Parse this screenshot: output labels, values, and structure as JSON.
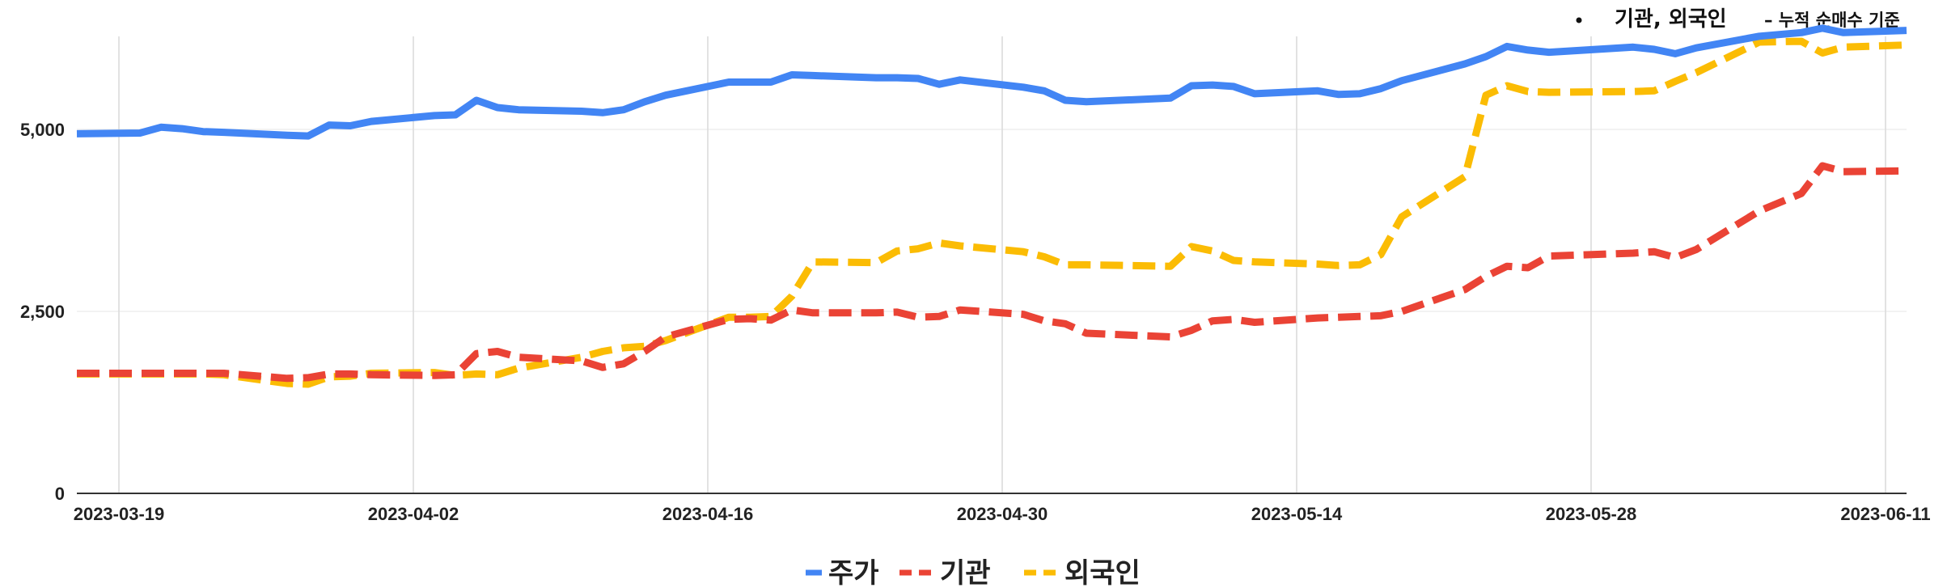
{
  "note": {
    "main": "기관, 외국인",
    "sub": "– 누적 순매수 기준"
  },
  "chart_data": {
    "type": "line",
    "title": "",
    "xlabel": "",
    "ylabel": "",
    "ylim": [
      0,
      6500
    ],
    "yticks": [
      0,
      2500,
      5000
    ],
    "ytick_labels": [
      "0",
      "2,500",
      "5,000"
    ],
    "x_tick_labels": [
      "2023-03-19",
      "2023-04-02",
      "2023-04-16",
      "2023-04-30",
      "2023-05-14",
      "2023-05-28",
      "2023-06-11"
    ],
    "x_range": [
      "2023-03-17",
      "2023-06-12"
    ],
    "grid": "vertical",
    "legend_position": "bottom",
    "series": [
      {
        "name": "주가",
        "color": "#4285F4",
        "dash": "solid",
        "points": [
          [
            "2023-03-17",
            4940
          ],
          [
            "2023-03-20",
            4950
          ],
          [
            "2023-03-21",
            5030
          ],
          [
            "2023-03-22",
            5010
          ],
          [
            "2023-03-23",
            4970
          ],
          [
            "2023-03-24",
            4960
          ],
          [
            "2023-03-27",
            4920
          ],
          [
            "2023-03-28",
            4910
          ],
          [
            "2023-03-29",
            5060
          ],
          [
            "2023-03-30",
            5050
          ],
          [
            "2023-03-31",
            5110
          ],
          [
            "2023-04-03",
            5190
          ],
          [
            "2023-04-04",
            5200
          ],
          [
            "2023-04-05",
            5400
          ],
          [
            "2023-04-06",
            5300
          ],
          [
            "2023-04-07",
            5270
          ],
          [
            "2023-04-10",
            5250
          ],
          [
            "2023-04-11",
            5230
          ],
          [
            "2023-04-12",
            5270
          ],
          [
            "2023-04-13",
            5380
          ],
          [
            "2023-04-14",
            5470
          ],
          [
            "2023-04-17",
            5650
          ],
          [
            "2023-04-18",
            5650
          ],
          [
            "2023-04-19",
            5650
          ],
          [
            "2023-04-20",
            5750
          ],
          [
            "2023-04-21",
            5740
          ],
          [
            "2023-04-24",
            5710
          ],
          [
            "2023-04-25",
            5710
          ],
          [
            "2023-04-26",
            5700
          ],
          [
            "2023-04-27",
            5620
          ],
          [
            "2023-04-28",
            5680
          ],
          [
            "2023-05-01",
            5580
          ],
          [
            "2023-05-02",
            5530
          ],
          [
            "2023-05-03",
            5400
          ],
          [
            "2023-05-04",
            5380
          ],
          [
            "2023-05-08",
            5430
          ],
          [
            "2023-05-09",
            5600
          ],
          [
            "2023-05-10",
            5610
          ],
          [
            "2023-05-11",
            5590
          ],
          [
            "2023-05-12",
            5490
          ],
          [
            "2023-05-15",
            5530
          ],
          [
            "2023-05-16",
            5480
          ],
          [
            "2023-05-17",
            5490
          ],
          [
            "2023-05-18",
            5560
          ],
          [
            "2023-05-19",
            5670
          ],
          [
            "2023-05-22",
            5900
          ],
          [
            "2023-05-23",
            6000
          ],
          [
            "2023-05-24",
            6140
          ],
          [
            "2023-05-25",
            6090
          ],
          [
            "2023-05-26",
            6060
          ],
          [
            "2023-05-30",
            6130
          ],
          [
            "2023-05-31",
            6100
          ],
          [
            "2023-06-01",
            6040
          ],
          [
            "2023-06-02",
            6120
          ],
          [
            "2023-06-05",
            6280
          ],
          [
            "2023-06-07",
            6330
          ],
          [
            "2023-06-08",
            6390
          ],
          [
            "2023-06-09",
            6330
          ],
          [
            "2023-06-12",
            6360
          ]
        ]
      },
      {
        "name": "기관",
        "color": "#EA4335",
        "dash": "dashed",
        "points": [
          [
            "2023-03-17",
            1650
          ],
          [
            "2023-03-20",
            1650
          ],
          [
            "2023-03-21",
            1650
          ],
          [
            "2023-03-22",
            1650
          ],
          [
            "2023-03-23",
            1650
          ],
          [
            "2023-03-24",
            1650
          ],
          [
            "2023-03-27",
            1580
          ],
          [
            "2023-03-28",
            1590
          ],
          [
            "2023-03-29",
            1640
          ],
          [
            "2023-03-30",
            1640
          ],
          [
            "2023-03-31",
            1630
          ],
          [
            "2023-04-03",
            1620
          ],
          [
            "2023-04-04",
            1630
          ],
          [
            "2023-04-05",
            1920
          ],
          [
            "2023-04-06",
            1950
          ],
          [
            "2023-04-07",
            1870
          ],
          [
            "2023-04-10",
            1820
          ],
          [
            "2023-04-11",
            1730
          ],
          [
            "2023-04-12",
            1780
          ],
          [
            "2023-04-13",
            1950
          ],
          [
            "2023-04-14",
            2150
          ],
          [
            "2023-04-17",
            2390
          ],
          [
            "2023-04-18",
            2400
          ],
          [
            "2023-04-19",
            2380
          ],
          [
            "2023-04-20",
            2520
          ],
          [
            "2023-04-21",
            2480
          ],
          [
            "2023-04-24",
            2480
          ],
          [
            "2023-04-25",
            2490
          ],
          [
            "2023-04-26",
            2420
          ],
          [
            "2023-04-27",
            2430
          ],
          [
            "2023-04-28",
            2520
          ],
          [
            "2023-05-01",
            2460
          ],
          [
            "2023-05-02",
            2370
          ],
          [
            "2023-05-03",
            2330
          ],
          [
            "2023-05-04",
            2200
          ],
          [
            "2023-05-08",
            2150
          ],
          [
            "2023-05-09",
            2240
          ],
          [
            "2023-05-10",
            2370
          ],
          [
            "2023-05-11",
            2390
          ],
          [
            "2023-05-12",
            2350
          ],
          [
            "2023-05-15",
            2410
          ],
          [
            "2023-05-16",
            2420
          ],
          [
            "2023-05-17",
            2430
          ],
          [
            "2023-05-18",
            2440
          ],
          [
            "2023-05-19",
            2500
          ],
          [
            "2023-05-22",
            2800
          ],
          [
            "2023-05-23",
            2980
          ],
          [
            "2023-05-24",
            3120
          ],
          [
            "2023-05-25",
            3100
          ],
          [
            "2023-05-26",
            3260
          ],
          [
            "2023-05-30",
            3300
          ],
          [
            "2023-05-31",
            3320
          ],
          [
            "2023-06-01",
            3240
          ],
          [
            "2023-06-02",
            3350
          ],
          [
            "2023-06-05",
            3880
          ],
          [
            "2023-06-07",
            4120
          ],
          [
            "2023-06-08",
            4500
          ],
          [
            "2023-06-09",
            4420
          ],
          [
            "2023-06-12",
            4430
          ]
        ]
      },
      {
        "name": "외국인",
        "color": "#FBBC04",
        "dash": "dashed",
        "points": [
          [
            "2023-03-17",
            1640
          ],
          [
            "2023-03-20",
            1640
          ],
          [
            "2023-03-21",
            1640
          ],
          [
            "2023-03-22",
            1640
          ],
          [
            "2023-03-23",
            1640
          ],
          [
            "2023-03-24",
            1630
          ],
          [
            "2023-03-27",
            1510
          ],
          [
            "2023-03-28",
            1500
          ],
          [
            "2023-03-29",
            1600
          ],
          [
            "2023-03-30",
            1610
          ],
          [
            "2023-03-31",
            1650
          ],
          [
            "2023-04-03",
            1660
          ],
          [
            "2023-04-04",
            1620
          ],
          [
            "2023-04-05",
            1640
          ],
          [
            "2023-04-06",
            1630
          ],
          [
            "2023-04-07",
            1720
          ],
          [
            "2023-04-10",
            1870
          ],
          [
            "2023-04-11",
            1950
          ],
          [
            "2023-04-12",
            2000
          ],
          [
            "2023-04-13",
            2020
          ],
          [
            "2023-04-14",
            2100
          ],
          [
            "2023-04-17",
            2420
          ],
          [
            "2023-04-18",
            2420
          ],
          [
            "2023-04-19",
            2430
          ],
          [
            "2023-04-20",
            2710
          ],
          [
            "2023-04-21",
            3180
          ],
          [
            "2023-04-24",
            3170
          ],
          [
            "2023-04-25",
            3330
          ],
          [
            "2023-04-26",
            3360
          ],
          [
            "2023-04-27",
            3440
          ],
          [
            "2023-04-28",
            3400
          ],
          [
            "2023-05-01",
            3320
          ],
          [
            "2023-05-02",
            3250
          ],
          [
            "2023-05-03",
            3140
          ],
          [
            "2023-05-04",
            3140
          ],
          [
            "2023-05-08",
            3120
          ],
          [
            "2023-05-09",
            3390
          ],
          [
            "2023-05-10",
            3330
          ],
          [
            "2023-05-11",
            3200
          ],
          [
            "2023-05-12",
            3180
          ],
          [
            "2023-05-15",
            3150
          ],
          [
            "2023-05-16",
            3130
          ],
          [
            "2023-05-17",
            3140
          ],
          [
            "2023-05-18",
            3280
          ],
          [
            "2023-05-19",
            3800
          ],
          [
            "2023-05-22",
            4350
          ],
          [
            "2023-05-23",
            5470
          ],
          [
            "2023-05-24",
            5600
          ],
          [
            "2023-05-25",
            5520
          ],
          [
            "2023-05-26",
            5510
          ],
          [
            "2023-05-30",
            5520
          ],
          [
            "2023-05-31",
            5530
          ],
          [
            "2023-06-01",
            5660
          ],
          [
            "2023-06-02",
            5780
          ],
          [
            "2023-06-05",
            6200
          ],
          [
            "2023-06-07",
            6210
          ],
          [
            "2023-06-08",
            6050
          ],
          [
            "2023-06-09",
            6130
          ],
          [
            "2023-06-12",
            6160
          ]
        ]
      }
    ]
  }
}
